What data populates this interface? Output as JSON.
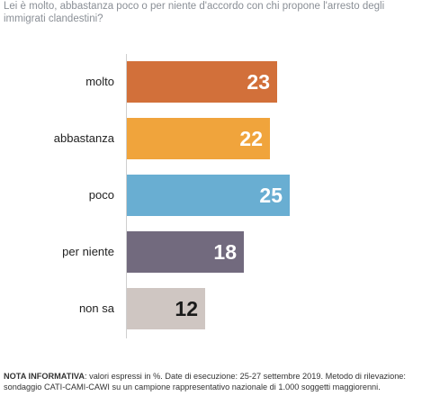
{
  "question": "Lei è molto, abbastanza poco o per niente d'accordo con chi propone l'arresto degli immigrati clandestini?",
  "chart_data": {
    "type": "bar",
    "orientation": "horizontal",
    "categories": [
      "molto",
      "abbastanza",
      "poco",
      "per niente",
      "non sa"
    ],
    "values": [
      23,
      22,
      25,
      18,
      12
    ],
    "colors": [
      "#d2703a",
      "#f0a43c",
      "#69aed2",
      "#726a7e",
      "#cfc6c2"
    ],
    "value_text_colors": [
      "#ffffff",
      "#ffffff",
      "#ffffff",
      "#ffffff",
      "#1a1a1a"
    ],
    "xlim": [
      0,
      25
    ]
  },
  "note": {
    "label": "NOTA INFORMATIVA",
    "text": ": valori espressi in %. Date di esecuzione: 25-27 settembre 2019. Metodo di rilevazione: sondaggio CATI-CAMI-CAWI su un campione rappresentativo nazionale di 1.000 soggetti maggiorenni."
  }
}
